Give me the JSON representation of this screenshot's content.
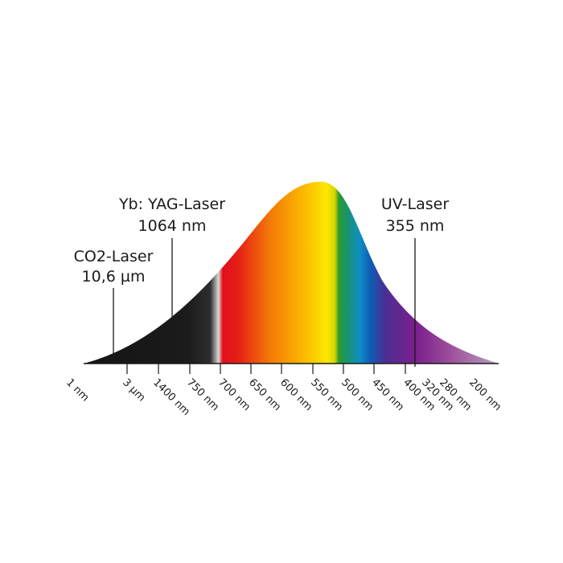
{
  "spectrum": {
    "bands": [
      {
        "offset": 0.0,
        "color": "#141414"
      },
      {
        "offset": 0.25,
        "color": "#1b1b1b"
      },
      {
        "offset": 0.305,
        "color": "#2e2e2e"
      },
      {
        "offset": 0.325,
        "color": "#d9d9d9"
      },
      {
        "offset": 0.335,
        "color": "#e0101a"
      },
      {
        "offset": 0.37,
        "color": "#e51d16"
      },
      {
        "offset": 0.45,
        "color": "#f47a08"
      },
      {
        "offset": 0.53,
        "color": "#fbb800"
      },
      {
        "offset": 0.585,
        "color": "#fde700"
      },
      {
        "offset": 0.605,
        "color": "#d7d600"
      },
      {
        "offset": 0.615,
        "color": "#2b9a2e"
      },
      {
        "offset": 0.635,
        "color": "#18946a"
      },
      {
        "offset": 0.665,
        "color": "#0f8ec6"
      },
      {
        "offset": 0.69,
        "color": "#0d5fb4"
      },
      {
        "offset": 0.725,
        "color": "#4a2f95"
      },
      {
        "offset": 0.8,
        "color": "#7b1f8c"
      },
      {
        "offset": 0.88,
        "color": "#9c4c99"
      },
      {
        "offset": 1.0,
        "color": "#b9a2bf"
      }
    ]
  },
  "lasers": [
    {
      "key": "co2",
      "name": "CO2-Laser",
      "wavelength": "10,6 µm"
    },
    {
      "key": "yag",
      "name": "Yb: YAG-Laser",
      "wavelength": "1064 nm"
    },
    {
      "key": "uv",
      "name": "UV-Laser",
      "wavelength": "355 nm"
    }
  ],
  "ticks": [
    "1 nm",
    "3 µm",
    "1400 nm",
    "750 nm",
    "700 nm",
    "650 nm",
    "600 nm",
    "550 nm",
    "500 nm",
    "450 nm",
    "400 nm",
    "320 nm",
    "280 nm",
    "200 nm"
  ]
}
